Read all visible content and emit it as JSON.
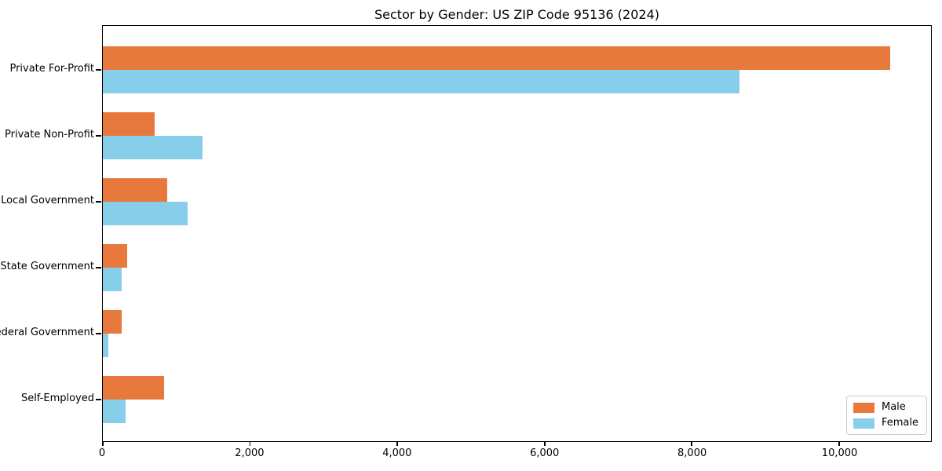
{
  "chart_data": {
    "type": "bar",
    "orientation": "horizontal",
    "title": "Sector by Gender: US ZIP Code 95136 (2024)",
    "categories": [
      "Private For-Profit",
      "Private Non-Profit",
      "Local Government",
      "State Government",
      "Federal Government",
      "Self-Employed"
    ],
    "series": [
      {
        "name": "Male",
        "color": "#E8793D",
        "values": [
          10700,
          700,
          870,
          330,
          255,
          830
        ]
      },
      {
        "name": "Female",
        "color": "#87CEEB",
        "values": [
          8650,
          1350,
          1150,
          255,
          75,
          310
        ]
      }
    ],
    "xlim": [
      0,
      11250
    ],
    "xticks": [
      0,
      2000,
      4000,
      6000,
      8000,
      10000
    ],
    "xtick_labels": [
      "0",
      "2,000",
      "4,000",
      "6,000",
      "8,000",
      "10,000"
    ],
    "xlabel": "",
    "ylabel": "",
    "grid": false,
    "legend": {
      "position": "lower-right",
      "items": [
        "Male",
        "Female"
      ]
    },
    "axis_color": "#000000"
  }
}
